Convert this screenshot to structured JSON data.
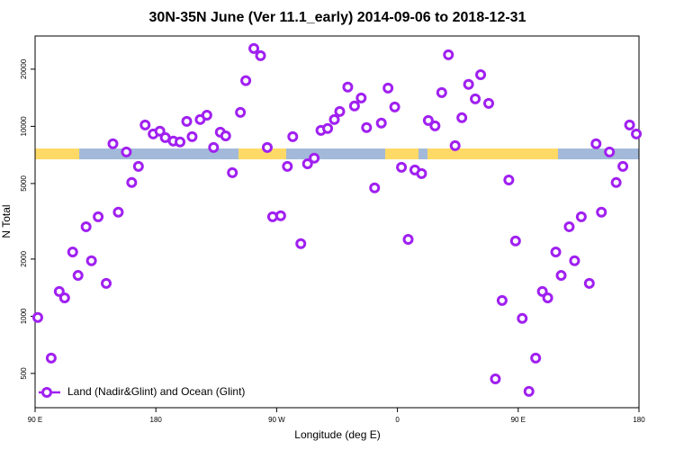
{
  "chart_data": {
    "type": "scatter",
    "title": "30N-35N June (Ver 11.1_early)   2014-09-06 to 2018-12-31",
    "x_label": "Longitude (deg E)",
    "y_label": "N Total",
    "xlim": [
      90,
      540
    ],
    "ylim": [
      330,
      29900
    ],
    "y_scale": "log",
    "xticks": [
      {
        "value": 90,
        "label": "90 E"
      },
      {
        "value": 180,
        "label": "180"
      },
      {
        "value": 270,
        "label": "90 W"
      },
      {
        "value": 360,
        "label": "0"
      },
      {
        "value": 450,
        "label": "90 E"
      },
      {
        "value": 540,
        "label": "180"
      }
    ],
    "yticks": [
      500,
      1000,
      2000,
      5000,
      10000,
      20000
    ],
    "legend_position": "bottom-left",
    "series": [
      {
        "name": "Land (Nadir&Glint) and Ocean (Glint)",
        "color": "#a020f0",
        "x": [
          92,
          102,
          108,
          112,
          118,
          122,
          128,
          132,
          137,
          143,
          148,
          152,
          158,
          162,
          167,
          172,
          178,
          183,
          187,
          193,
          198,
          203,
          207,
          213,
          218,
          223,
          228,
          232,
          237,
          243,
          247,
          253,
          258,
          263,
          267,
          273,
          278,
          282,
          288,
          293,
          298,
          303,
          308,
          313,
          317,
          323,
          328,
          333,
          337,
          343,
          348,
          353,
          358,
          363,
          368,
          373,
          378,
          383,
          388,
          393,
          398,
          403,
          408,
          413,
          418,
          422,
          428,
          433,
          438,
          443,
          448,
          453,
          458,
          463,
          468,
          472,
          478,
          482,
          488,
          492,
          497,
          503,
          508,
          512,
          518,
          523,
          528,
          533,
          538
        ],
        "values": [
          985,
          602,
          1350,
          1250,
          2180,
          1640,
          2960,
          1960,
          3340,
          1490,
          8090,
          3530,
          7330,
          5060,
          6150,
          10160,
          9120,
          9430,
          8720,
          8360,
          8270,
          10620,
          8820,
          10860,
          11450,
          7740,
          9310,
          8910,
          5700,
          11850,
          17400,
          25700,
          23560,
          7740,
          3340,
          3380,
          6150,
          8820,
          2410,
          6350,
          6800,
          9520,
          9740,
          10860,
          11970,
          16100,
          12800,
          14100,
          9850,
          4740,
          10400,
          15900,
          12650,
          6090,
          2540,
          5890,
          5640,
          10740,
          10050,
          15050,
          23800,
          7910,
          11100,
          16640,
          13950,
          18700,
          13210,
          468,
          1210,
          5220,
          2490,
          974,
          402,
          602,
          1350,
          1250,
          2180,
          1640,
          2960,
          1960,
          3340,
          1490,
          8090,
          3530,
          7330,
          5060,
          6150,
          10160,
          9120
        ]
      }
    ]
  }
}
